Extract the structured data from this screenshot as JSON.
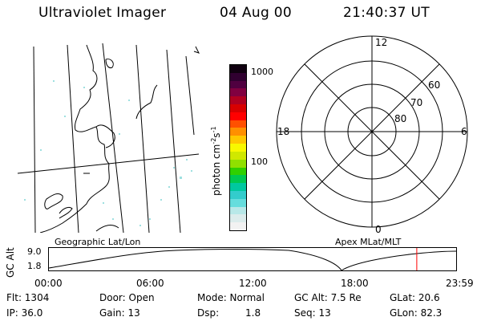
{
  "header": {
    "instrument": "Ultraviolet Imager",
    "date": "04 Aug 00",
    "time": "21:40:37 UT"
  },
  "colorbar": {
    "label": "photon cm",
    "label_exp1": "-2",
    "label_mid": "s",
    "label_exp2": "-1",
    "tick_1000": "1000",
    "tick_100": "100",
    "colors": [
      "#f2f2f2",
      "#dcecec",
      "#b8e8e8",
      "#66dddd",
      "#33cccc",
      "#00c8a0",
      "#00c850",
      "#30d000",
      "#90e000",
      "#d0e800",
      "#f8f800",
      "#ffc800",
      "#ff9000",
      "#ff5000",
      "#ff0000",
      "#d80000",
      "#b00020",
      "#800040",
      "#500040",
      "#300030",
      "#100010"
    ]
  },
  "polar_plot": {
    "mlt_12": "12",
    "mlt_18": "18",
    "mlt_6": "6",
    "mlt_0": "0",
    "lat_60": "60",
    "lat_70": "70",
    "lat_80": "80"
  },
  "panel_labels": {
    "left": "Geographic Lat/Lon",
    "right": "Apex MLat/MLT"
  },
  "timeline": {
    "ylabel": "GC Alt",
    "y_top": "9.0",
    "y_bottom": "1.8",
    "x_ticks": [
      "00:00",
      "06:00",
      "12:00",
      "18:00",
      "23:59"
    ],
    "current_marker_color": "#ff0000",
    "current_time_hours": 21.68
  },
  "status": {
    "flt": "Flt: 1304",
    "ip": "IP: 36.0",
    "door": "Door: Open",
    "gain": "Gain: 13",
    "mode": "Mode: Normal",
    "dsp_label": "Dsp:",
    "dsp_value": "1.8",
    "gc_alt": "GC Alt: 7.5 Re",
    "seq": "Seq: 13",
    "glat": "GLat: 20.6",
    "glon": "GLon: 82.3"
  }
}
